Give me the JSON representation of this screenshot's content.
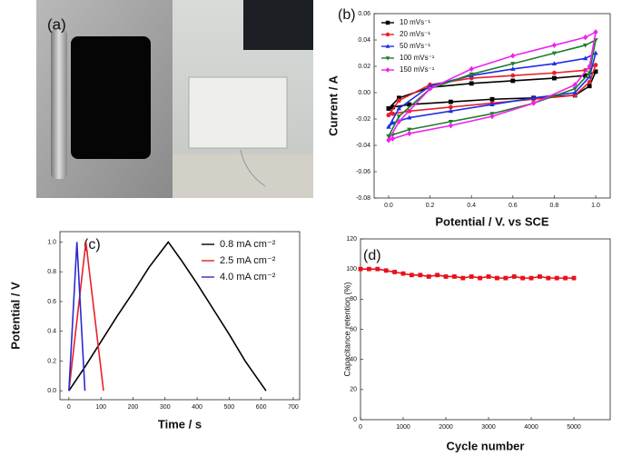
{
  "photo": {
    "label": "(a)"
  },
  "chart_data": [
    {
      "type": "line",
      "label": "(b)",
      "x_label": "Potential / V. vs SCE",
      "y_label": "Current / A",
      "xlim": [
        -0.07,
        1.07
      ],
      "ylim": [
        -0.08,
        0.06
      ],
      "xticks": [
        {
          "value": 0,
          "label": "0.0"
        },
        0.2,
        0.4,
        0.6,
        0.8,
        {
          "value": 1,
          "label": "1.0"
        }
      ],
      "yticks": [
        -0.08,
        -0.06,
        -0.04,
        -0.02,
        {
          "value": 0,
          "label": "0.00"
        },
        0.02,
        0.04,
        0.06
      ],
      "legend": "upper left",
      "grid": false,
      "x": [
        0,
        0.05,
        0.2,
        0.4,
        0.6,
        0.8,
        0.95,
        1.0,
        0.97,
        0.9,
        0.7,
        0.5,
        0.3,
        0.1,
        0.02,
        0
      ],
      "series": [
        {
          "name": "10 mVs⁻¹",
          "color": "#000000",
          "marker": "square",
          "values": [
            -0.012,
            -0.004,
            0.004,
            0.007,
            0.009,
            0.011,
            0.013,
            0.016,
            0.005,
            -0.002,
            -0.004,
            -0.005,
            -0.007,
            -0.009,
            -0.011,
            -0.012
          ]
        },
        {
          "name": "20 mVs⁻¹",
          "color": "#e8202a",
          "marker": "circle",
          "values": [
            -0.017,
            -0.006,
            0.006,
            0.011,
            0.013,
            0.015,
            0.017,
            0.021,
            0.008,
            -0.002,
            -0.005,
            -0.008,
            -0.011,
            -0.014,
            -0.016,
            -0.017
          ]
        },
        {
          "name": "50 mVs⁻¹",
          "color": "#1f2fe0",
          "marker": "triangle",
          "values": [
            -0.026,
            -0.012,
            0.005,
            0.013,
            0.018,
            0.022,
            0.026,
            0.03,
            0.012,
            0,
            -0.004,
            -0.009,
            -0.014,
            -0.019,
            -0.023,
            -0.026
          ]
        },
        {
          "name": "100 mVs⁻¹",
          "color": "#1e7d2a",
          "marker": "triangle-down",
          "values": [
            -0.033,
            -0.018,
            0.003,
            0.014,
            0.022,
            0.03,
            0.036,
            0.04,
            0.015,
            0.003,
            -0.008,
            -0.016,
            -0.022,
            -0.028,
            -0.032,
            -0.033
          ]
        },
        {
          "name": "150 mVs⁻¹",
          "color": "#ee22ee",
          "marker": "diamond",
          "values": [
            -0.036,
            -0.022,
            0.003,
            0.018,
            0.028,
            0.036,
            0.042,
            0.046,
            0.02,
            0.006,
            -0.008,
            -0.018,
            -0.025,
            -0.031,
            -0.035,
            -0.036
          ]
        }
      ]
    },
    {
      "type": "line",
      "label": "(c)",
      "x_label": "Time / s",
      "y_label": "Potential / V",
      "xlim": [
        -28,
        720
      ],
      "ylim": [
        -0.06,
        1.07
      ],
      "xticks": [
        0,
        100,
        200,
        300,
        400,
        500,
        600,
        700
      ],
      "yticks": [
        {
          "value": 0,
          "label": "0.0"
        },
        0.2,
        0.4,
        0.6,
        0.8,
        {
          "value": 1,
          "label": "1.0"
        }
      ],
      "legend": "upper right",
      "grid": false,
      "series": [
        {
          "name": "0.8 mA cm⁻²",
          "color": "#000000",
          "x": [
            0,
            50,
            100,
            150,
            200,
            250,
            310,
            350,
            400,
            450,
            500,
            550,
            615
          ],
          "values": [
            0,
            0.16,
            0.33,
            0.5,
            0.66,
            0.83,
            1.0,
            0.88,
            0.72,
            0.55,
            0.38,
            0.2,
            0
          ]
        },
        {
          "name": "2.5 mA cm⁻²",
          "color": "#e8202a",
          "x": [
            0,
            53,
            108
          ],
          "values": [
            0,
            1.0,
            0
          ]
        },
        {
          "name": "4.0 mA cm⁻²",
          "color": "#2a2ad0",
          "x": [
            0,
            25,
            50
          ],
          "values": [
            0,
            1.0,
            0
          ]
        }
      ]
    },
    {
      "type": "line",
      "label": "(d)",
      "x_label": "Cycle number",
      "y_label": "Capacitance retention (%)",
      "xlim": [
        0,
        5850
      ],
      "ylim": [
        0,
        120
      ],
      "xticks": [
        0,
        1000,
        2000,
        3000,
        4000,
        5000
      ],
      "yticks": [
        0,
        20,
        40,
        60,
        80,
        100,
        120
      ],
      "grid": false,
      "x": [
        0,
        200,
        400,
        600,
        800,
        1000,
        1200,
        1400,
        1600,
        1800,
        2000,
        2200,
        2400,
        2600,
        2800,
        3000,
        3200,
        3400,
        3600,
        3800,
        4000,
        4200,
        4400,
        4600,
        4800,
        5000
      ],
      "series": [
        {
          "color": "#e8101a",
          "marker": "square",
          "values": [
            100,
            100,
            100,
            99,
            98,
            97,
            96,
            96,
            95,
            96,
            95,
            95,
            94,
            95,
            94,
            95,
            94,
            94,
            95,
            94,
            94,
            95,
            94,
            94,
            94,
            94
          ]
        }
      ]
    }
  ]
}
